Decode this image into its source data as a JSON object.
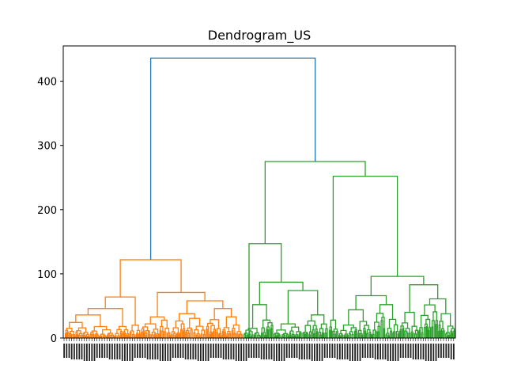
{
  "chart_data": {
    "type": "dendrogram",
    "title": "Dendrogram_US",
    "xlabel": "",
    "ylabel": "",
    "ylim": [
      0,
      455
    ],
    "y_ticks": [
      0,
      100,
      200,
      300,
      400
    ],
    "x_tick_labels": "dense, unreadable leaf labels",
    "colors": {
      "root": "#1f77b4",
      "cluster_1": "#ff7f0e",
      "cluster_2": "#2ca02c"
    },
    "root_merge_height": 436,
    "clusters": [
      {
        "color": "#ff7f0e",
        "merge_height": 122,
        "sub_merges": [
          64,
          71,
          58,
          46,
          38,
          33,
          25,
          19,
          14
        ]
      },
      {
        "color": "#2ca02c",
        "merge_height": 275,
        "sub_merges": [
          252,
          147,
          96,
          87,
          83,
          68,
          61,
          52,
          44,
          36,
          28,
          22,
          15
        ]
      }
    ]
  }
}
